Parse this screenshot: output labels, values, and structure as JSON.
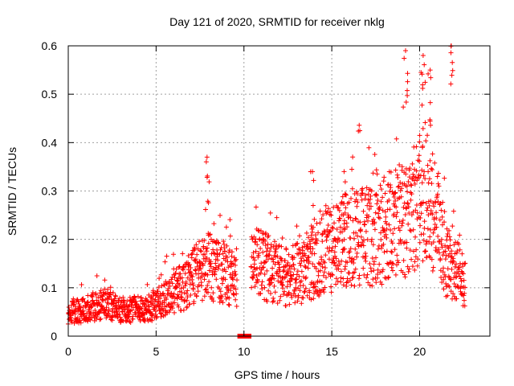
{
  "chart_data": {
    "type": "scatter",
    "title": "Day 121 of 2020, SRMTID for receiver nklg",
    "xlabel": "GPS time / hours",
    "ylabel": "SRMTID / TECUs",
    "xlim": [
      0,
      24
    ],
    "ylim": [
      0,
      0.6
    ],
    "xticks": [
      0,
      5,
      10,
      15,
      20
    ],
    "yticks": [
      0,
      0.1,
      0.2,
      0.3,
      0.4,
      0.5,
      0.6
    ],
    "ytick_labels": [
      "0",
      "0.1",
      "0.2",
      "0.3",
      "0.4",
      "0.5",
      "0.6"
    ],
    "grid": true,
    "marker": "+",
    "series": [
      {
        "name": "SRMTID",
        "color": "#ff0000",
        "trend": [
          {
            "x": 0.0,
            "y": 0.05
          },
          {
            "x": 1.0,
            "y": 0.055
          },
          {
            "x": 2.0,
            "y": 0.07
          },
          {
            "x": 3.0,
            "y": 0.055
          },
          {
            "x": 4.0,
            "y": 0.055
          },
          {
            "x": 5.0,
            "y": 0.065
          },
          {
            "x": 6.0,
            "y": 0.09
          },
          {
            "x": 7.0,
            "y": 0.12
          },
          {
            "x": 8.0,
            "y": 0.15
          },
          {
            "x": 9.0,
            "y": 0.13
          },
          {
            "x": 9.5,
            "y": 0.12
          },
          {
            "x": 10.5,
            "y": 0.15
          },
          {
            "x": 11.5,
            "y": 0.14
          },
          {
            "x": 12.5,
            "y": 0.12
          },
          {
            "x": 13.5,
            "y": 0.14
          },
          {
            "x": 14.5,
            "y": 0.17
          },
          {
            "x": 15.5,
            "y": 0.19
          },
          {
            "x": 16.5,
            "y": 0.21
          },
          {
            "x": 17.5,
            "y": 0.2
          },
          {
            "x": 18.5,
            "y": 0.24
          },
          {
            "x": 19.5,
            "y": 0.24
          },
          {
            "x": 20.3,
            "y": 0.3
          },
          {
            "x": 21.0,
            "y": 0.25
          },
          {
            "x": 21.5,
            "y": 0.16
          },
          {
            "x": 22.0,
            "y": 0.14
          },
          {
            "x": 22.6,
            "y": 0.11
          }
        ],
        "peaks": [
          {
            "x": 7.9,
            "y": 0.37
          },
          {
            "x": 13.9,
            "y": 0.34
          },
          {
            "x": 15.7,
            "y": 0.34
          },
          {
            "x": 19.2,
            "y": 0.59
          },
          {
            "x": 20.2,
            "y": 0.58
          },
          {
            "x": 20.6,
            "y": 0.55
          },
          {
            "x": 21.8,
            "y": 0.6
          }
        ],
        "gap": {
          "start": 9.6,
          "end": 10.4,
          "y": 0.0
        }
      }
    ]
  }
}
